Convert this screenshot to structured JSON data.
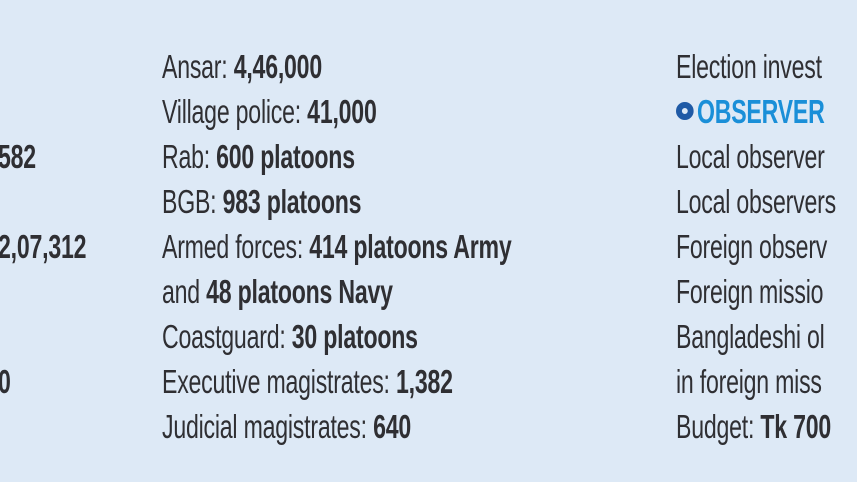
{
  "left": {
    "values": [
      "582",
      "2,07,312",
      "0"
    ]
  },
  "middle": {
    "lines": [
      {
        "label": "Ansar: ",
        "value": "4,46,000"
      },
      {
        "label": "Village police: ",
        "value": "41,000"
      },
      {
        "label": "Rab: ",
        "value": "600 platoons"
      },
      {
        "label": "BGB: ",
        "value": "983 platoons"
      },
      {
        "label": "Armed forces: ",
        "value": "414 platoons Army"
      },
      {
        "label": "and ",
        "value": "48 platoons Navy"
      },
      {
        "label": "Coastguard: ",
        "value": "30 platoons"
      },
      {
        "label": "Executive magistrates: ",
        "value": "1,382"
      },
      {
        "label": "Judicial magistrates: ",
        "value": "640"
      }
    ]
  },
  "right": {
    "line0": "Election invest",
    "section_heading": "OBSERVER",
    "lines": [
      "Local observer",
      "Local observers",
      "Foreign observ",
      "Foreign missio",
      "Bangladeshi ol",
      "in foreign miss"
    ],
    "budget_label": "Budget: ",
    "budget_value": "Tk 700"
  },
  "colors": {
    "background": "#dde9f6",
    "text": "#2f2f33",
    "heading": "#1a8fd8",
    "bullet": "#1f5aa6"
  }
}
